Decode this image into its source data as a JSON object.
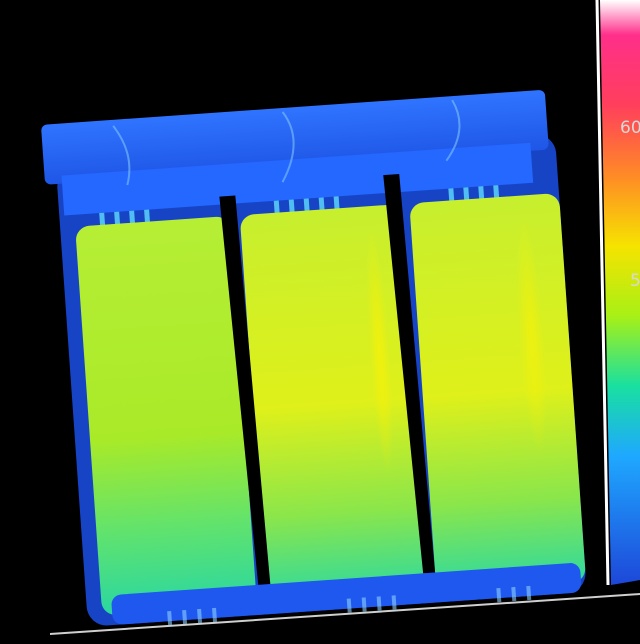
{
  "colorbar": {
    "ticks": [
      {
        "label": "60"
      },
      {
        "label": "5"
      }
    ]
  },
  "colors": {
    "background": "#000000",
    "cool": "#1f5fff",
    "mid": "#19e0a0",
    "warm": "#f4f000",
    "hot": "#ff2d78"
  }
}
